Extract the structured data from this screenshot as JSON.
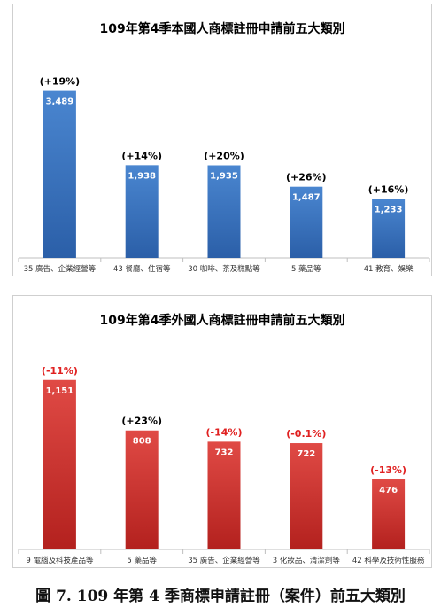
{
  "figure_caption": "圖 7. 109 年第 4 季商標申請註冊（案件）前五大類別",
  "colors": {
    "domestic_bar_top": "#4a86d0",
    "domestic_bar_bottom": "#2b5fa8",
    "foreign_bar_top": "#e04a45",
    "foreign_bar_bottom": "#b3211e",
    "positive_change": "#000000",
    "negative_change": "#e02020"
  },
  "chart_data": [
    {
      "type": "bar",
      "title": "109年第4季本國人商標註冊申請前五大類別",
      "categories": [
        "35 廣告、企業經營等",
        "43 餐廳、住宿等",
        "30 咖啡、茶及糕點等",
        "5 藥品等",
        "41 教育、娛樂"
      ],
      "values": [
        3489,
        1938,
        1935,
        1487,
        1233
      ],
      "value_labels": [
        "3,489",
        "1,938",
        "1,935",
        "1,487",
        "1,233"
      ],
      "change_labels": [
        "(+19%)",
        "(+14%)",
        "(+20%)",
        "(+26%)",
        "(+16%)"
      ],
      "change_negative": [
        false,
        false,
        false,
        false,
        false
      ],
      "ylim": [
        0,
        4000
      ],
      "grid": false,
      "legend": "none",
      "bar_color": "blue"
    },
    {
      "type": "bar",
      "title": "109年第4季外國人商標註冊申請前五大類別",
      "categories": [
        "9 電腦及科技產品等",
        "5 藥品等",
        "35 廣告、企業經營等",
        "3 化妝品、清潔劑等",
        "42 科學及技術性服務"
      ],
      "values": [
        1151,
        808,
        732,
        722,
        476
      ],
      "value_labels": [
        "1,151",
        "808",
        "732",
        "722",
        "476"
      ],
      "change_labels": [
        "(-11%)",
        "(+23%)",
        "(-14%)",
        "(-0.1%)",
        "(-13%)"
      ],
      "change_negative": [
        true,
        false,
        true,
        true,
        true
      ],
      "ylim": [
        0,
        1300
      ],
      "grid": false,
      "legend": "none",
      "bar_color": "red"
    }
  ]
}
